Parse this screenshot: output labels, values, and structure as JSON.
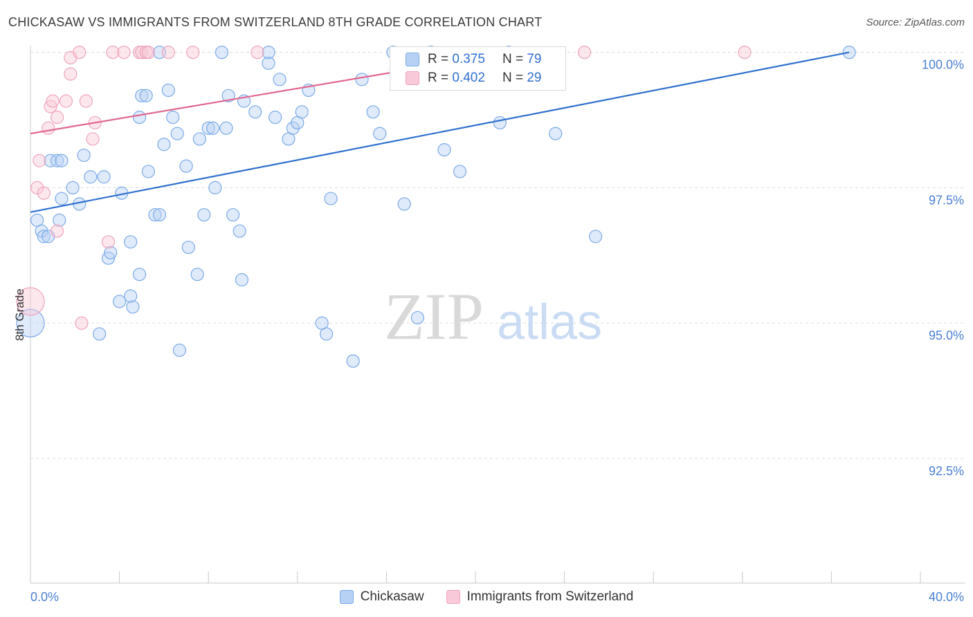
{
  "title": "CHICKASAW VS IMMIGRANTS FROM SWITZERLAND 8TH GRADE CORRELATION CHART",
  "source": "Source: ZipAtlas.com",
  "watermark": {
    "zip": "ZIP",
    "atlas": "atlas"
  },
  "legend": [
    {
      "r_label": "R =",
      "r_value": "0.375",
      "n_label": "N =",
      "n_value": "79",
      "color": "#7aaae8",
      "fill": "#b7d1f4"
    },
    {
      "r_label": "R =",
      "r_value": "0.402",
      "n_label": "N =",
      "n_value": "29",
      "color": "#eea3bd",
      "fill": "#f8c9d8"
    }
  ],
  "bottom_legend": [
    "Chickasaw",
    "Immigrants from Switzerland"
  ],
  "chart_data": {
    "type": "scatter",
    "title": "CHICKASAW VS IMMIGRANTS FROM SWITZERLAND 8TH GRADE CORRELATION CHART",
    "xlabel": "",
    "ylabel": "8th Grade",
    "xlim": [
      0,
      40
    ],
    "ylim": [
      90.2,
      100.2
    ],
    "x_tick_labels": [
      "0.0%",
      "40.0%"
    ],
    "y_ticks": [
      92.5,
      95.0,
      97.5,
      100.0
    ],
    "y_tick_labels": [
      "92.5%",
      "95.0%",
      "97.5%",
      "100.0%"
    ],
    "series": [
      {
        "name": "Chickasaw",
        "color": "#5b8fd8",
        "line_color": "#2e6fce",
        "trend": {
          "x": [
            0,
            36.8
          ],
          "y": [
            97.05,
            100.0
          ]
        },
        "points": [
          [
            0.3,
            96.9
          ],
          [
            0.5,
            96.7
          ],
          [
            0.6,
            96.6
          ],
          [
            0.8,
            96.6
          ],
          [
            0.9,
            98.0
          ],
          [
            1.2,
            98.0
          ],
          [
            1.3,
            96.9
          ],
          [
            1.4,
            97.3
          ],
          [
            1.4,
            98.0
          ],
          [
            1.9,
            97.5
          ],
          [
            2.2,
            97.2
          ],
          [
            2.4,
            98.1
          ],
          [
            2.7,
            97.7
          ],
          [
            3.3,
            97.7
          ],
          [
            3.5,
            96.2
          ],
          [
            3.6,
            96.3
          ],
          [
            4.1,
            97.4
          ],
          [
            4.0,
            95.4
          ],
          [
            4.6,
            95.3
          ],
          [
            4.9,
            95.9
          ],
          [
            4.5,
            95.5
          ],
          [
            4.9,
            98.8
          ],
          [
            5.0,
            99.2
          ],
          [
            5.2,
            99.2
          ],
          [
            5.3,
            97.8
          ],
          [
            5.6,
            97.0
          ],
          [
            5.8,
            97.0
          ],
          [
            6.0,
            98.3
          ],
          [
            6.2,
            99.3
          ],
          [
            6.4,
            98.8
          ],
          [
            6.6,
            98.5
          ],
          [
            7.0,
            97.9
          ],
          [
            7.1,
            96.4
          ],
          [
            7.5,
            95.9
          ],
          [
            7.6,
            98.4
          ],
          [
            7.8,
            97.0
          ],
          [
            8.0,
            98.6
          ],
          [
            8.2,
            98.6
          ],
          [
            8.3,
            97.5
          ],
          [
            8.8,
            98.6
          ],
          [
            8.9,
            99.2
          ],
          [
            9.1,
            97.0
          ],
          [
            9.4,
            96.7
          ],
          [
            9.6,
            99.1
          ],
          [
            10.1,
            98.9
          ],
          [
            10.7,
            99.8
          ],
          [
            11.0,
            98.8
          ],
          [
            11.2,
            99.5
          ],
          [
            11.6,
            98.4
          ],
          [
            11.8,
            98.6
          ],
          [
            12.0,
            98.7
          ],
          [
            12.2,
            98.9
          ],
          [
            12.5,
            99.3
          ],
          [
            13.1,
            95.0
          ],
          [
            13.3,
            94.8
          ],
          [
            13.5,
            97.3
          ],
          [
            14.5,
            94.3
          ],
          [
            14.9,
            99.5
          ],
          [
            15.4,
            98.9
          ],
          [
            15.7,
            98.5
          ],
          [
            16.8,
            97.2
          ],
          [
            17.4,
            95.1
          ],
          [
            18.6,
            98.2
          ],
          [
            19.3,
            97.8
          ],
          [
            21.1,
            98.7
          ],
          [
            23.6,
            98.5
          ],
          [
            25.4,
            96.6
          ],
          [
            36.8,
            100.0
          ],
          [
            0.0,
            95.0
          ],
          [
            3.1,
            94.8
          ],
          [
            6.7,
            94.5
          ],
          [
            4.5,
            96.5
          ],
          [
            9.5,
            95.8
          ],
          [
            5.8,
            100.0
          ],
          [
            8.6,
            100.0
          ],
          [
            16.3,
            100.0
          ],
          [
            18.0,
            100.0
          ],
          [
            21.5,
            100.0
          ],
          [
            10.7,
            100.0
          ]
        ]
      },
      {
        "name": "Immigrants from Switzerland",
        "color": "#e48fad",
        "line_color": "#e0668f",
        "trend": {
          "x": [
            0,
            21.6
          ],
          "y": [
            98.5,
            100.0
          ]
        },
        "points": [
          [
            0.0,
            95.4
          ],
          [
            0.3,
            97.5
          ],
          [
            0.4,
            98.0
          ],
          [
            0.6,
            97.4
          ],
          [
            0.8,
            98.6
          ],
          [
            0.9,
            99.0
          ],
          [
            1.0,
            99.1
          ],
          [
            1.2,
            98.8
          ],
          [
            1.2,
            96.7
          ],
          [
            1.6,
            99.1
          ],
          [
            1.8,
            99.9
          ],
          [
            1.8,
            99.6
          ],
          [
            2.2,
            100.0
          ],
          [
            2.3,
            95.0
          ],
          [
            2.5,
            99.1
          ],
          [
            2.8,
            98.4
          ],
          [
            2.9,
            98.7
          ],
          [
            3.5,
            96.5
          ],
          [
            3.7,
            100.0
          ],
          [
            4.2,
            100.0
          ],
          [
            4.9,
            100.0
          ],
          [
            5.0,
            100.0
          ],
          [
            5.2,
            100.0
          ],
          [
            5.3,
            100.0
          ],
          [
            6.2,
            100.0
          ],
          [
            7.3,
            100.0
          ],
          [
            10.2,
            100.0
          ],
          [
            24.9,
            100.0
          ],
          [
            32.1,
            100.0
          ]
        ]
      }
    ]
  }
}
